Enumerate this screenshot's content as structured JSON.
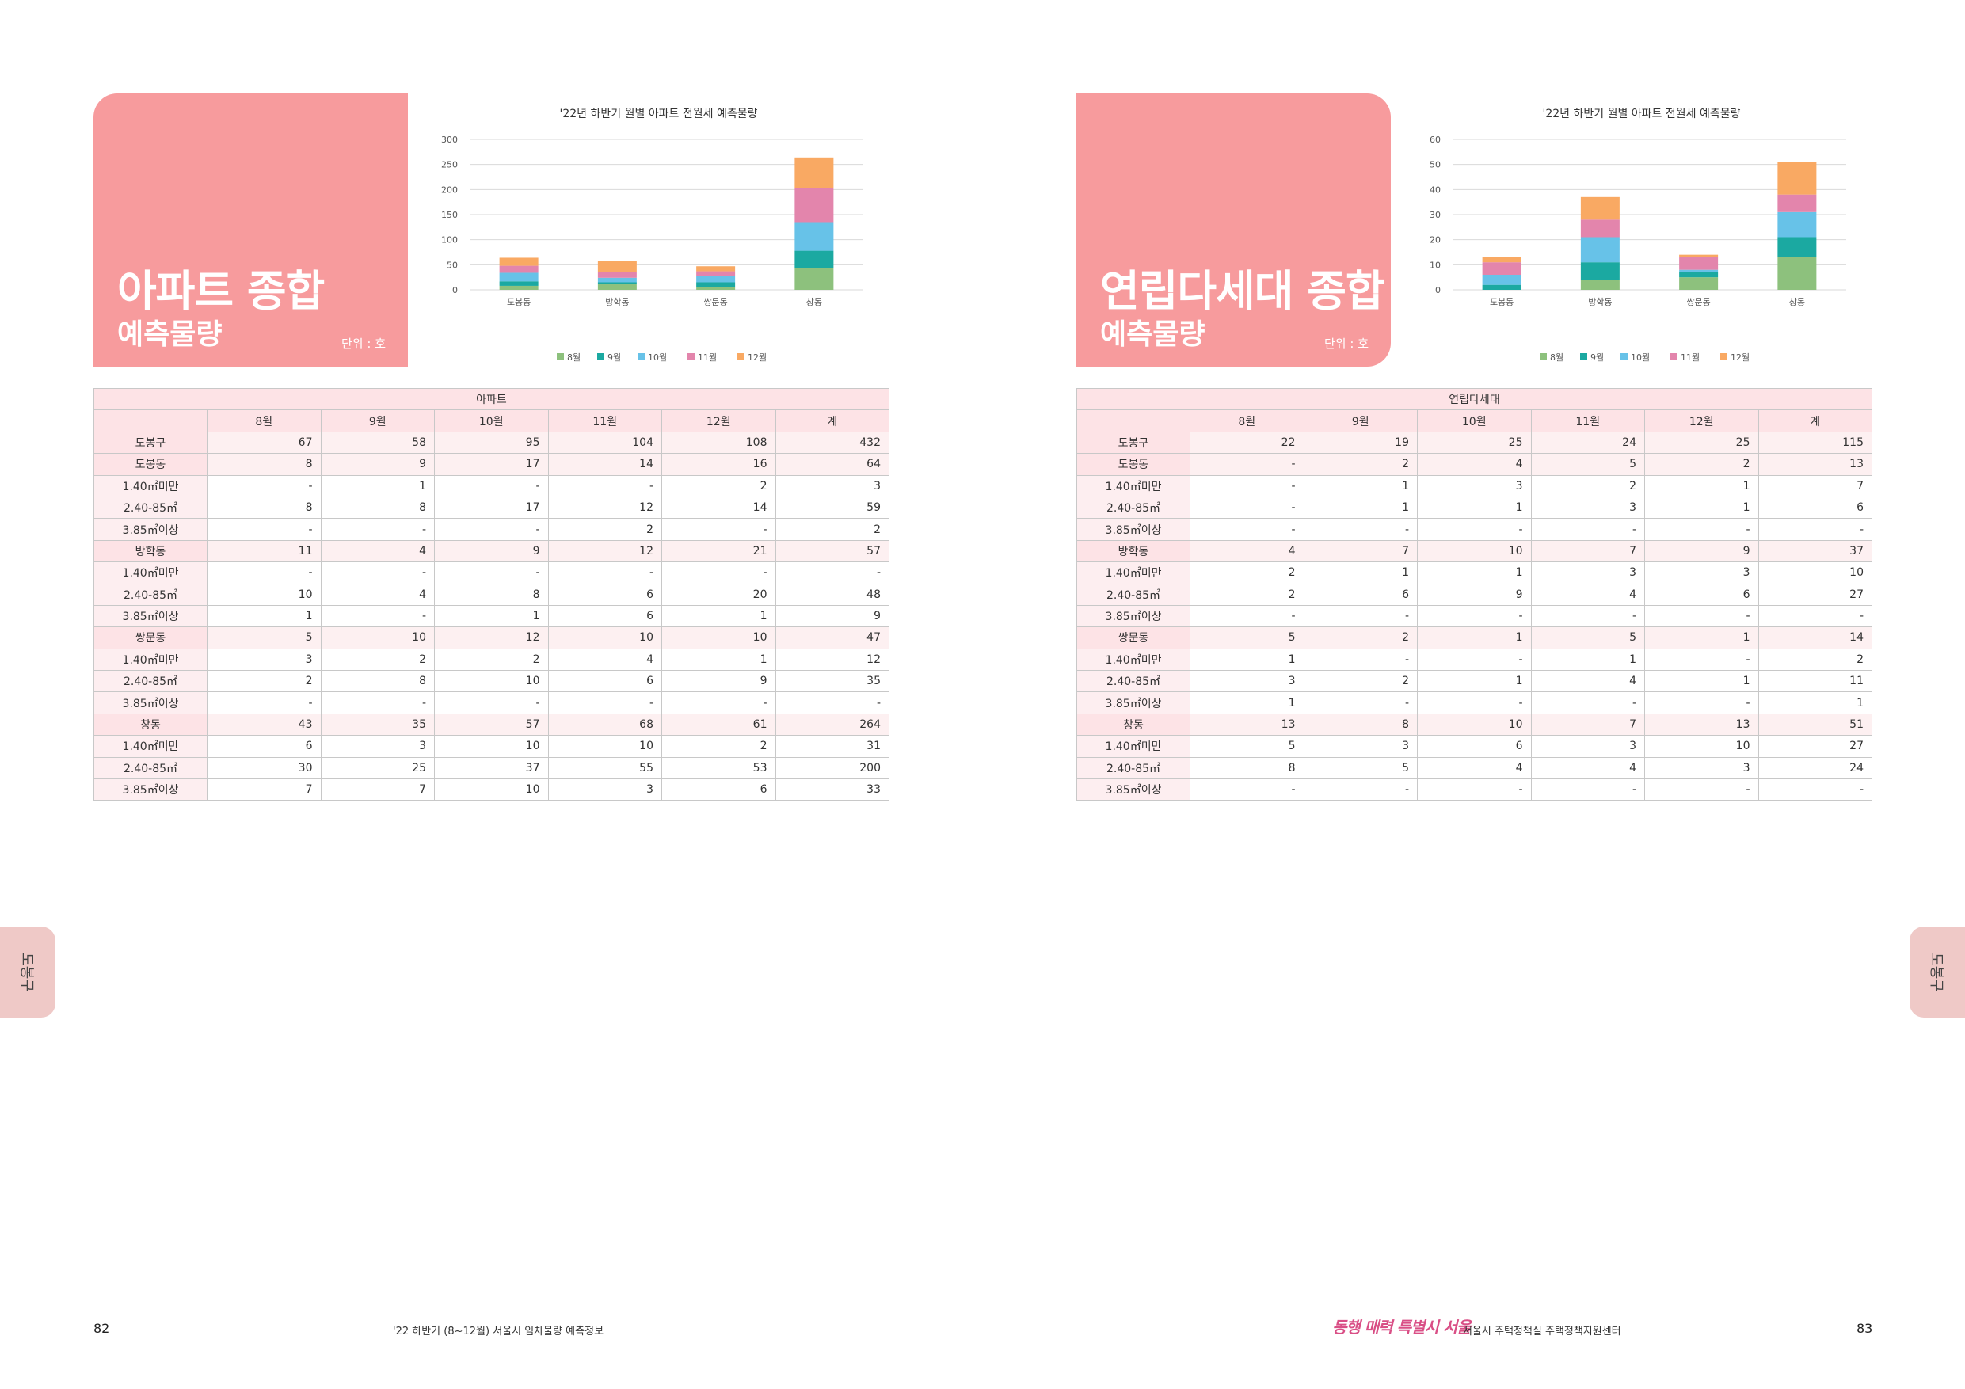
{
  "left": {
    "title_main": "아파트 종합",
    "title_sub": "예측물량",
    "unit": "단위 : 호",
    "table_header": "아파트",
    "col_headers": [
      "8월",
      "9월",
      "10월",
      "11월",
      "12월",
      "계"
    ],
    "rows": [
      {
        "label": "도봉구",
        "cells": [
          "67",
          "58",
          "95",
          "104",
          "108",
          "432"
        ],
        "type": "group"
      },
      {
        "label": "도봉동",
        "cells": [
          "8",
          "9",
          "17",
          "14",
          "16",
          "64"
        ],
        "type": "group"
      },
      {
        "label": "1.40㎡미만",
        "cells": [
          "-",
          "1",
          "-",
          "-",
          "2",
          "3"
        ],
        "type": "sub"
      },
      {
        "label": "2.40-85㎡",
        "cells": [
          "8",
          "8",
          "17",
          "12",
          "14",
          "59"
        ],
        "type": "sub"
      },
      {
        "label": "3.85㎡이상",
        "cells": [
          "-",
          "-",
          "-",
          "2",
          "-",
          "2"
        ],
        "type": "sub"
      },
      {
        "label": "방학동",
        "cells": [
          "11",
          "4",
          "9",
          "12",
          "21",
          "57"
        ],
        "type": "group"
      },
      {
        "label": "1.40㎡미만",
        "cells": [
          "-",
          "-",
          "-",
          "-",
          "-",
          "-"
        ],
        "type": "sub"
      },
      {
        "label": "2.40-85㎡",
        "cells": [
          "10",
          "4",
          "8",
          "6",
          "20",
          "48"
        ],
        "type": "sub"
      },
      {
        "label": "3.85㎡이상",
        "cells": [
          "1",
          "-",
          "1",
          "6",
          "1",
          "9"
        ],
        "type": "sub"
      },
      {
        "label": "쌍문동",
        "cells": [
          "5",
          "10",
          "12",
          "10",
          "10",
          "47"
        ],
        "type": "group"
      },
      {
        "label": "1.40㎡미만",
        "cells": [
          "3",
          "2",
          "2",
          "4",
          "1",
          "12"
        ],
        "type": "sub"
      },
      {
        "label": "2.40-85㎡",
        "cells": [
          "2",
          "8",
          "10",
          "6",
          "9",
          "35"
        ],
        "type": "sub"
      },
      {
        "label": "3.85㎡이상",
        "cells": [
          "-",
          "-",
          "-",
          "-",
          "-",
          "-"
        ],
        "type": "sub"
      },
      {
        "label": "창동",
        "cells": [
          "43",
          "35",
          "57",
          "68",
          "61",
          "264"
        ],
        "type": "group"
      },
      {
        "label": "1.40㎡미만",
        "cells": [
          "6",
          "3",
          "10",
          "10",
          "2",
          "31"
        ],
        "type": "sub"
      },
      {
        "label": "2.40-85㎡",
        "cells": [
          "30",
          "25",
          "37",
          "55",
          "53",
          "200"
        ],
        "type": "sub"
      },
      {
        "label": "3.85㎡이상",
        "cells": [
          "7",
          "7",
          "10",
          "3",
          "6",
          "33"
        ],
        "type": "sub"
      }
    ]
  },
  "right": {
    "title_main": "연립다세대 종합",
    "title_sub": "예측물량",
    "unit": "단위 : 호",
    "table_header": "연립다세대",
    "col_headers": [
      "8월",
      "9월",
      "10월",
      "11월",
      "12월",
      "계"
    ],
    "rows": [
      {
        "label": "도봉구",
        "cells": [
          "22",
          "19",
          "25",
          "24",
          "25",
          "115"
        ],
        "type": "group"
      },
      {
        "label": "도봉동",
        "cells": [
          "-",
          "2",
          "4",
          "5",
          "2",
          "13"
        ],
        "type": "group"
      },
      {
        "label": "1.40㎡미만",
        "cells": [
          "-",
          "1",
          "3",
          "2",
          "1",
          "7"
        ],
        "type": "sub"
      },
      {
        "label": "2.40-85㎡",
        "cells": [
          "-",
          "1",
          "1",
          "3",
          "1",
          "6"
        ],
        "type": "sub"
      },
      {
        "label": "3.85㎡이상",
        "cells": [
          "-",
          "-",
          "-",
          "-",
          "-",
          "-"
        ],
        "type": "sub"
      },
      {
        "label": "방학동",
        "cells": [
          "4",
          "7",
          "10",
          "7",
          "9",
          "37"
        ],
        "type": "group"
      },
      {
        "label": "1.40㎡미만",
        "cells": [
          "2",
          "1",
          "1",
          "3",
          "3",
          "10"
        ],
        "type": "sub"
      },
      {
        "label": "2.40-85㎡",
        "cells": [
          "2",
          "6",
          "9",
          "4",
          "6",
          "27"
        ],
        "type": "sub"
      },
      {
        "label": "3.85㎡이상",
        "cells": [
          "-",
          "-",
          "-",
          "-",
          "-",
          "-"
        ],
        "type": "sub"
      },
      {
        "label": "쌍문동",
        "cells": [
          "5",
          "2",
          "1",
          "5",
          "1",
          "14"
        ],
        "type": "group"
      },
      {
        "label": "1.40㎡미만",
        "cells": [
          "1",
          "-",
          "-",
          "1",
          "-",
          "2"
        ],
        "type": "sub"
      },
      {
        "label": "2.40-85㎡",
        "cells": [
          "3",
          "2",
          "1",
          "4",
          "1",
          "11"
        ],
        "type": "sub"
      },
      {
        "label": "3.85㎡이상",
        "cells": [
          "1",
          "-",
          "-",
          "-",
          "-",
          "1"
        ],
        "type": "sub"
      },
      {
        "label": "창동",
        "cells": [
          "13",
          "8",
          "10",
          "7",
          "13",
          "51"
        ],
        "type": "group"
      },
      {
        "label": "1.40㎡미만",
        "cells": [
          "5",
          "3",
          "6",
          "3",
          "10",
          "27"
        ],
        "type": "sub"
      },
      {
        "label": "2.40-85㎡",
        "cells": [
          "8",
          "5",
          "4",
          "4",
          "3",
          "24"
        ],
        "type": "sub"
      },
      {
        "label": "3.85㎡이상",
        "cells": [
          "-",
          "-",
          "-",
          "-",
          "-",
          "-"
        ],
        "type": "sub"
      }
    ]
  },
  "chart_data": [
    {
      "type": "bar",
      "stacked": true,
      "title": "'22년 하반기 월별 아파트 전월세 예측물량",
      "categories": [
        "도봉동",
        "방학동",
        "쌍문동",
        "창동"
      ],
      "ylim": [
        0,
        300
      ],
      "yticks": [
        0,
        50,
        100,
        150,
        200,
        250,
        300
      ],
      "grid": true,
      "legend": "bottom",
      "series": [
        {
          "name": "8월",
          "color": "#8dc17d",
          "values": [
            8,
            11,
            5,
            43
          ]
        },
        {
          "name": "9월",
          "color": "#1ba9a1",
          "values": [
            9,
            4,
            10,
            35
          ]
        },
        {
          "name": "10월",
          "color": "#67c2e8",
          "values": [
            17,
            9,
            12,
            57
          ]
        },
        {
          "name": "11월",
          "color": "#e385ac",
          "values": [
            14,
            12,
            10,
            68
          ]
        },
        {
          "name": "12월",
          "color": "#f9a963",
          "values": [
            16,
            21,
            10,
            61
          ]
        }
      ]
    },
    {
      "type": "bar",
      "stacked": true,
      "title": "'22년 하반기 월별 아파트 전월세 예측물량",
      "categories": [
        "도봉동",
        "방학동",
        "쌍문동",
        "창동"
      ],
      "ylim": [
        0,
        60
      ],
      "yticks": [
        0,
        10,
        20,
        30,
        40,
        50,
        60
      ],
      "grid": true,
      "legend": "bottom",
      "series": [
        {
          "name": "8월",
          "color": "#8dc17d",
          "values": [
            0,
            4,
            5,
            13
          ]
        },
        {
          "name": "9월",
          "color": "#1ba9a1",
          "values": [
            2,
            7,
            2,
            8
          ]
        },
        {
          "name": "10월",
          "color": "#67c2e8",
          "values": [
            4,
            10,
            1,
            10
          ]
        },
        {
          "name": "11월",
          "color": "#e385ac",
          "values": [
            5,
            7,
            5,
            7
          ]
        },
        {
          "name": "12월",
          "color": "#f9a963",
          "values": [
            2,
            9,
            1,
            13
          ]
        }
      ]
    }
  ],
  "side_tab": "도봉구",
  "footer": {
    "left_page_num": "82",
    "left_text": "'22 하반기 (8~12월) 서울시 임차물량 예측정보",
    "slogan": "동행 매력 특별시 서울",
    "right_text": "서울시 주택정책실 주택정책지원센터",
    "right_page_num": "83"
  }
}
